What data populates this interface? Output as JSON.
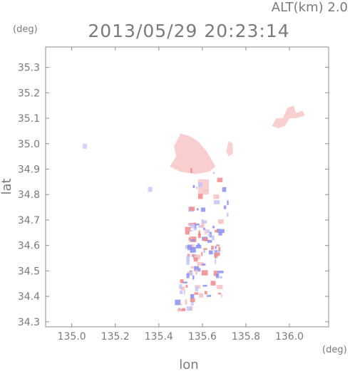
{
  "header": {
    "altitude_label": "ALT(km)  2.0",
    "timestamp": "2013/05/29 20:23:14",
    "y_unit": "(deg)",
    "x_unit": "(deg)"
  },
  "chart_data": {
    "type": "heatmap",
    "title": "2013/05/29 20:23:14",
    "subtitle": "ALT(km)  2.0",
    "xlabel": "lon",
    "ylabel": "lat",
    "x_unit": "(deg)",
    "y_unit": "(deg)",
    "xlim": [
      134.88,
      136.18
    ],
    "ylim": [
      34.28,
      35.38
    ],
    "xticks": [
      135.0,
      135.2,
      135.4,
      135.6,
      135.8,
      136.0
    ],
    "xtick_labels": [
      "135.0",
      "135.2",
      "135.4",
      "135.6",
      "135.8",
      "136.0"
    ],
    "yticks": [
      34.3,
      34.4,
      34.5,
      34.6,
      34.7,
      34.8,
      34.9,
      35.0,
      35.1,
      35.2,
      35.3
    ],
    "ytick_labels": [
      "34.3",
      "34.4",
      "34.5",
      "34.6",
      "34.7",
      "34.8",
      "34.9",
      "35.0",
      "35.1",
      "35.2",
      "35.3"
    ],
    "grid": false,
    "colors": {
      "positive": "#f08a8a",
      "positive_light": "#f7c0c0",
      "negative": "#8a8ef0",
      "negative_light": "#c4c6f6",
      "axis": "#8c8c8c"
    },
    "regions": [
      {
        "name": "main-area",
        "sign": "positive",
        "intensity": 0.45,
        "polygon": [
          [
            135.5,
            35.04
          ],
          [
            135.54,
            35.03
          ],
          [
            135.58,
            35.01
          ],
          [
            135.62,
            34.97
          ],
          [
            135.66,
            34.91
          ],
          [
            135.63,
            34.89
          ],
          [
            135.57,
            34.88
          ],
          [
            135.5,
            34.89
          ],
          [
            135.45,
            34.91
          ],
          [
            135.48,
            34.95
          ],
          [
            135.47,
            34.99
          ]
        ]
      },
      {
        "name": "east-patch",
        "sign": "positive",
        "intensity": 0.4,
        "polygon": [
          [
            135.72,
            35.01
          ],
          [
            135.74,
            35.0
          ],
          [
            135.74,
            34.96
          ],
          [
            135.72,
            34.95
          ],
          [
            135.71,
            34.97
          ]
        ]
      },
      {
        "name": "ne-area",
        "sign": "positive",
        "intensity": 0.45,
        "polygon": [
          [
            135.92,
            35.07
          ],
          [
            135.94,
            35.1
          ],
          [
            135.97,
            35.1
          ],
          [
            135.99,
            35.14
          ],
          [
            136.02,
            35.15
          ],
          [
            136.03,
            35.12
          ],
          [
            136.06,
            35.13
          ],
          [
            136.07,
            35.11
          ],
          [
            136.03,
            35.1
          ],
          [
            136.0,
            35.1
          ],
          [
            135.98,
            35.07
          ],
          [
            135.95,
            35.06
          ]
        ]
      },
      {
        "name": "small-west",
        "sign": "negative",
        "intensity": 0.4,
        "polygon": [
          [
            135.05,
            34.98
          ],
          [
            135.07,
            34.98
          ],
          [
            135.07,
            35.0
          ],
          [
            135.05,
            35.0
          ]
        ]
      },
      {
        "name": "west-dot",
        "sign": "negative",
        "intensity": 0.5,
        "polygon": [
          [
            135.35,
            34.81
          ],
          [
            135.37,
            34.81
          ],
          [
            135.37,
            34.83
          ],
          [
            135.35,
            34.83
          ]
        ]
      },
      {
        "name": "mid-strip",
        "sign": "positive",
        "intensity": 0.4,
        "polygon": [
          [
            135.58,
            34.8
          ],
          [
            135.63,
            34.8
          ],
          [
            135.63,
            34.86
          ],
          [
            135.58,
            34.86
          ]
        ]
      }
    ],
    "cell_clusters": [
      {
        "name": "band-upper",
        "lon": [
          135.53,
          135.69
        ],
        "lat": [
          34.62,
          34.7
        ],
        "count": 34
      },
      {
        "name": "band-middle",
        "lon": [
          135.52,
          135.68
        ],
        "lat": [
          34.52,
          34.62
        ],
        "count": 34
      },
      {
        "name": "band-lower",
        "lon": [
          135.5,
          135.69
        ],
        "lat": [
          34.4,
          34.52
        ],
        "count": 34
      },
      {
        "name": "south-tail",
        "lon": [
          135.48,
          135.57
        ],
        "lat": [
          34.34,
          34.4
        ],
        "count": 12
      },
      {
        "name": "north-scatter",
        "lon": [
          135.52,
          135.72
        ],
        "lat": [
          34.72,
          34.9
        ],
        "count": 18
      }
    ]
  }
}
